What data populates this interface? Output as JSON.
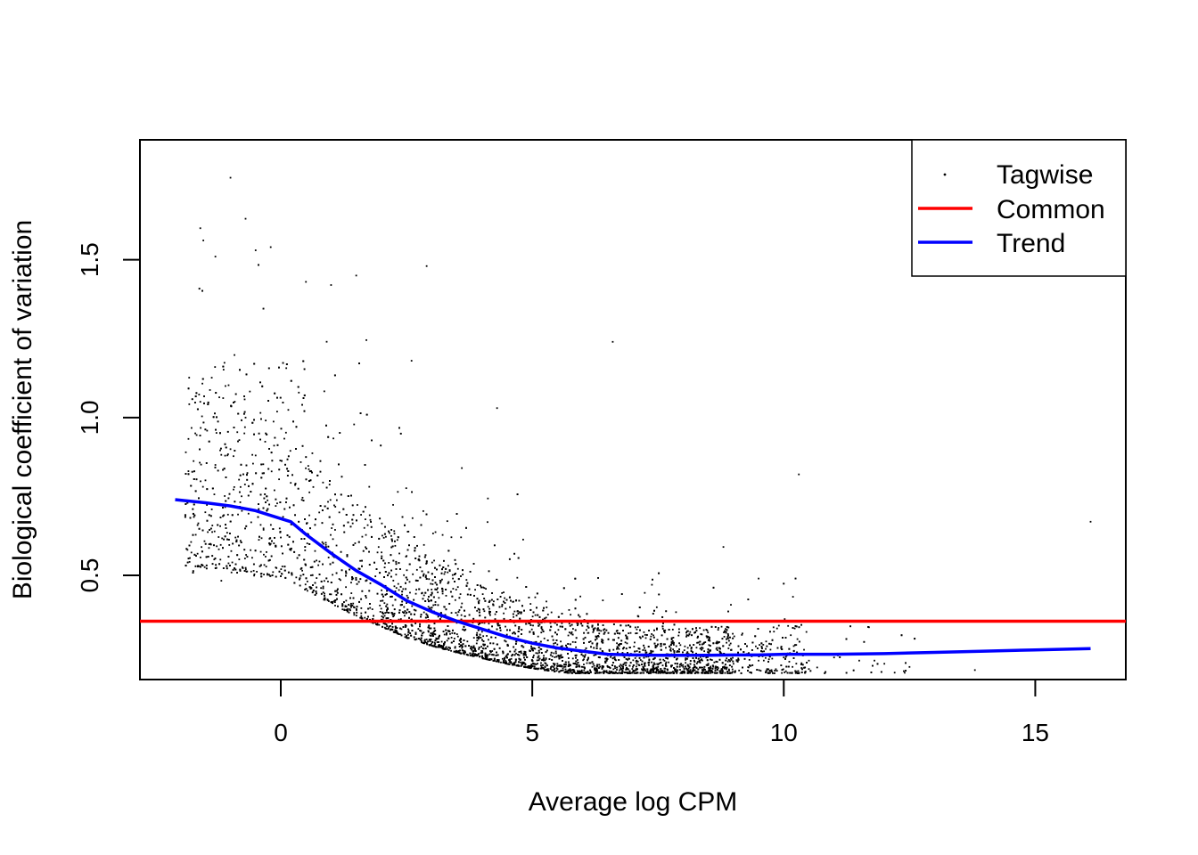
{
  "chart_data": {
    "type": "scatter",
    "title": "",
    "xlabel": "Average log CPM",
    "ylabel": "Biological coefficient of variation",
    "xlim": [
      -2.8,
      16.8
    ],
    "ylim": [
      0.17,
      1.88
    ],
    "x_ticks": [
      "0",
      "5",
      "10",
      "15"
    ],
    "x_tick_values": [
      0,
      5,
      10,
      15
    ],
    "y_ticks": [
      "0.5",
      "1.0",
      "1.5"
    ],
    "y_tick_values": [
      0.5,
      1.0,
      1.5
    ],
    "grid": false,
    "legend_position": "top-right",
    "legend": [
      "Tagwise",
      "Common",
      "Trend"
    ],
    "series": [
      {
        "name": "Tagwise",
        "type": "scatter",
        "color": "#000000",
        "note_values": "dense cloud of several thousand genes; representative sampled points listed",
        "x": [
          -1.7,
          -1.6,
          -1.5,
          -1.4,
          -1.3,
          -1.2,
          -1.1,
          -1.0,
          -0.9,
          -0.8,
          -0.7,
          -0.6,
          -0.5,
          -0.4,
          -0.3,
          -0.2,
          -0.1,
          0.0,
          0.2,
          0.4,
          0.6,
          0.8,
          1.0,
          1.3,
          1.6,
          2.0,
          2.4,
          2.8,
          3.2,
          3.6,
          4.0,
          4.5,
          5.0,
          5.5,
          6.0,
          6.5,
          7.0,
          7.5,
          8.0,
          8.5,
          9.0,
          9.5,
          10.0,
          10.5,
          11.0,
          11.5,
          12.0,
          12.5,
          13.8,
          16.1,
          -1.0,
          -0.7,
          -0.5,
          -1.6,
          -1.3,
          -0.2,
          0.5,
          1.0,
          1.5,
          2.6,
          2.9,
          6.6,
          10.3,
          4.3,
          3.6,
          8.8,
          9.5
        ],
        "y": [
          0.95,
          1.05,
          0.7,
          0.6,
          0.85,
          0.55,
          1.1,
          0.9,
          0.62,
          0.78,
          1.0,
          0.58,
          0.88,
          0.66,
          0.95,
          0.6,
          0.72,
          0.62,
          0.58,
          0.52,
          0.5,
          0.46,
          0.44,
          0.42,
          0.38,
          0.36,
          0.33,
          0.31,
          0.29,
          0.27,
          0.26,
          0.24,
          0.23,
          0.22,
          0.21,
          0.21,
          0.21,
          0.21,
          0.21,
          0.22,
          0.22,
          0.23,
          0.24,
          0.23,
          0.24,
          0.23,
          0.22,
          0.21,
          0.2,
          0.67,
          1.76,
          1.63,
          1.53,
          1.6,
          1.51,
          1.54,
          1.43,
          1.42,
          1.45,
          1.18,
          1.48,
          1.24,
          0.82,
          1.03,
          0.84,
          0.59,
          0.49
        ]
      },
      {
        "name": "Common",
        "type": "hline",
        "color": "#ff0000",
        "y": 0.355
      },
      {
        "name": "Trend",
        "type": "line",
        "color": "#0000ff",
        "x": [
          -2.1,
          -1.5,
          -1.0,
          -0.5,
          0.0,
          0.2,
          0.5,
          1.0,
          1.5,
          2.0,
          2.5,
          3.0,
          3.5,
          4.0,
          4.5,
          5.0,
          5.5,
          6.0,
          6.5,
          7.0,
          7.5,
          8.0,
          8.5,
          9.0,
          9.5,
          10.0,
          10.5,
          11.0,
          12.0,
          13.0,
          14.0,
          15.0,
          16.1
        ],
        "y": [
          0.74,
          0.73,
          0.72,
          0.705,
          0.68,
          0.67,
          0.63,
          0.57,
          0.515,
          0.47,
          0.42,
          0.385,
          0.355,
          0.33,
          0.305,
          0.285,
          0.27,
          0.26,
          0.25,
          0.248,
          0.247,
          0.247,
          0.247,
          0.248,
          0.248,
          0.25,
          0.25,
          0.25,
          0.252,
          0.256,
          0.26,
          0.264,
          0.268
        ]
      }
    ]
  }
}
